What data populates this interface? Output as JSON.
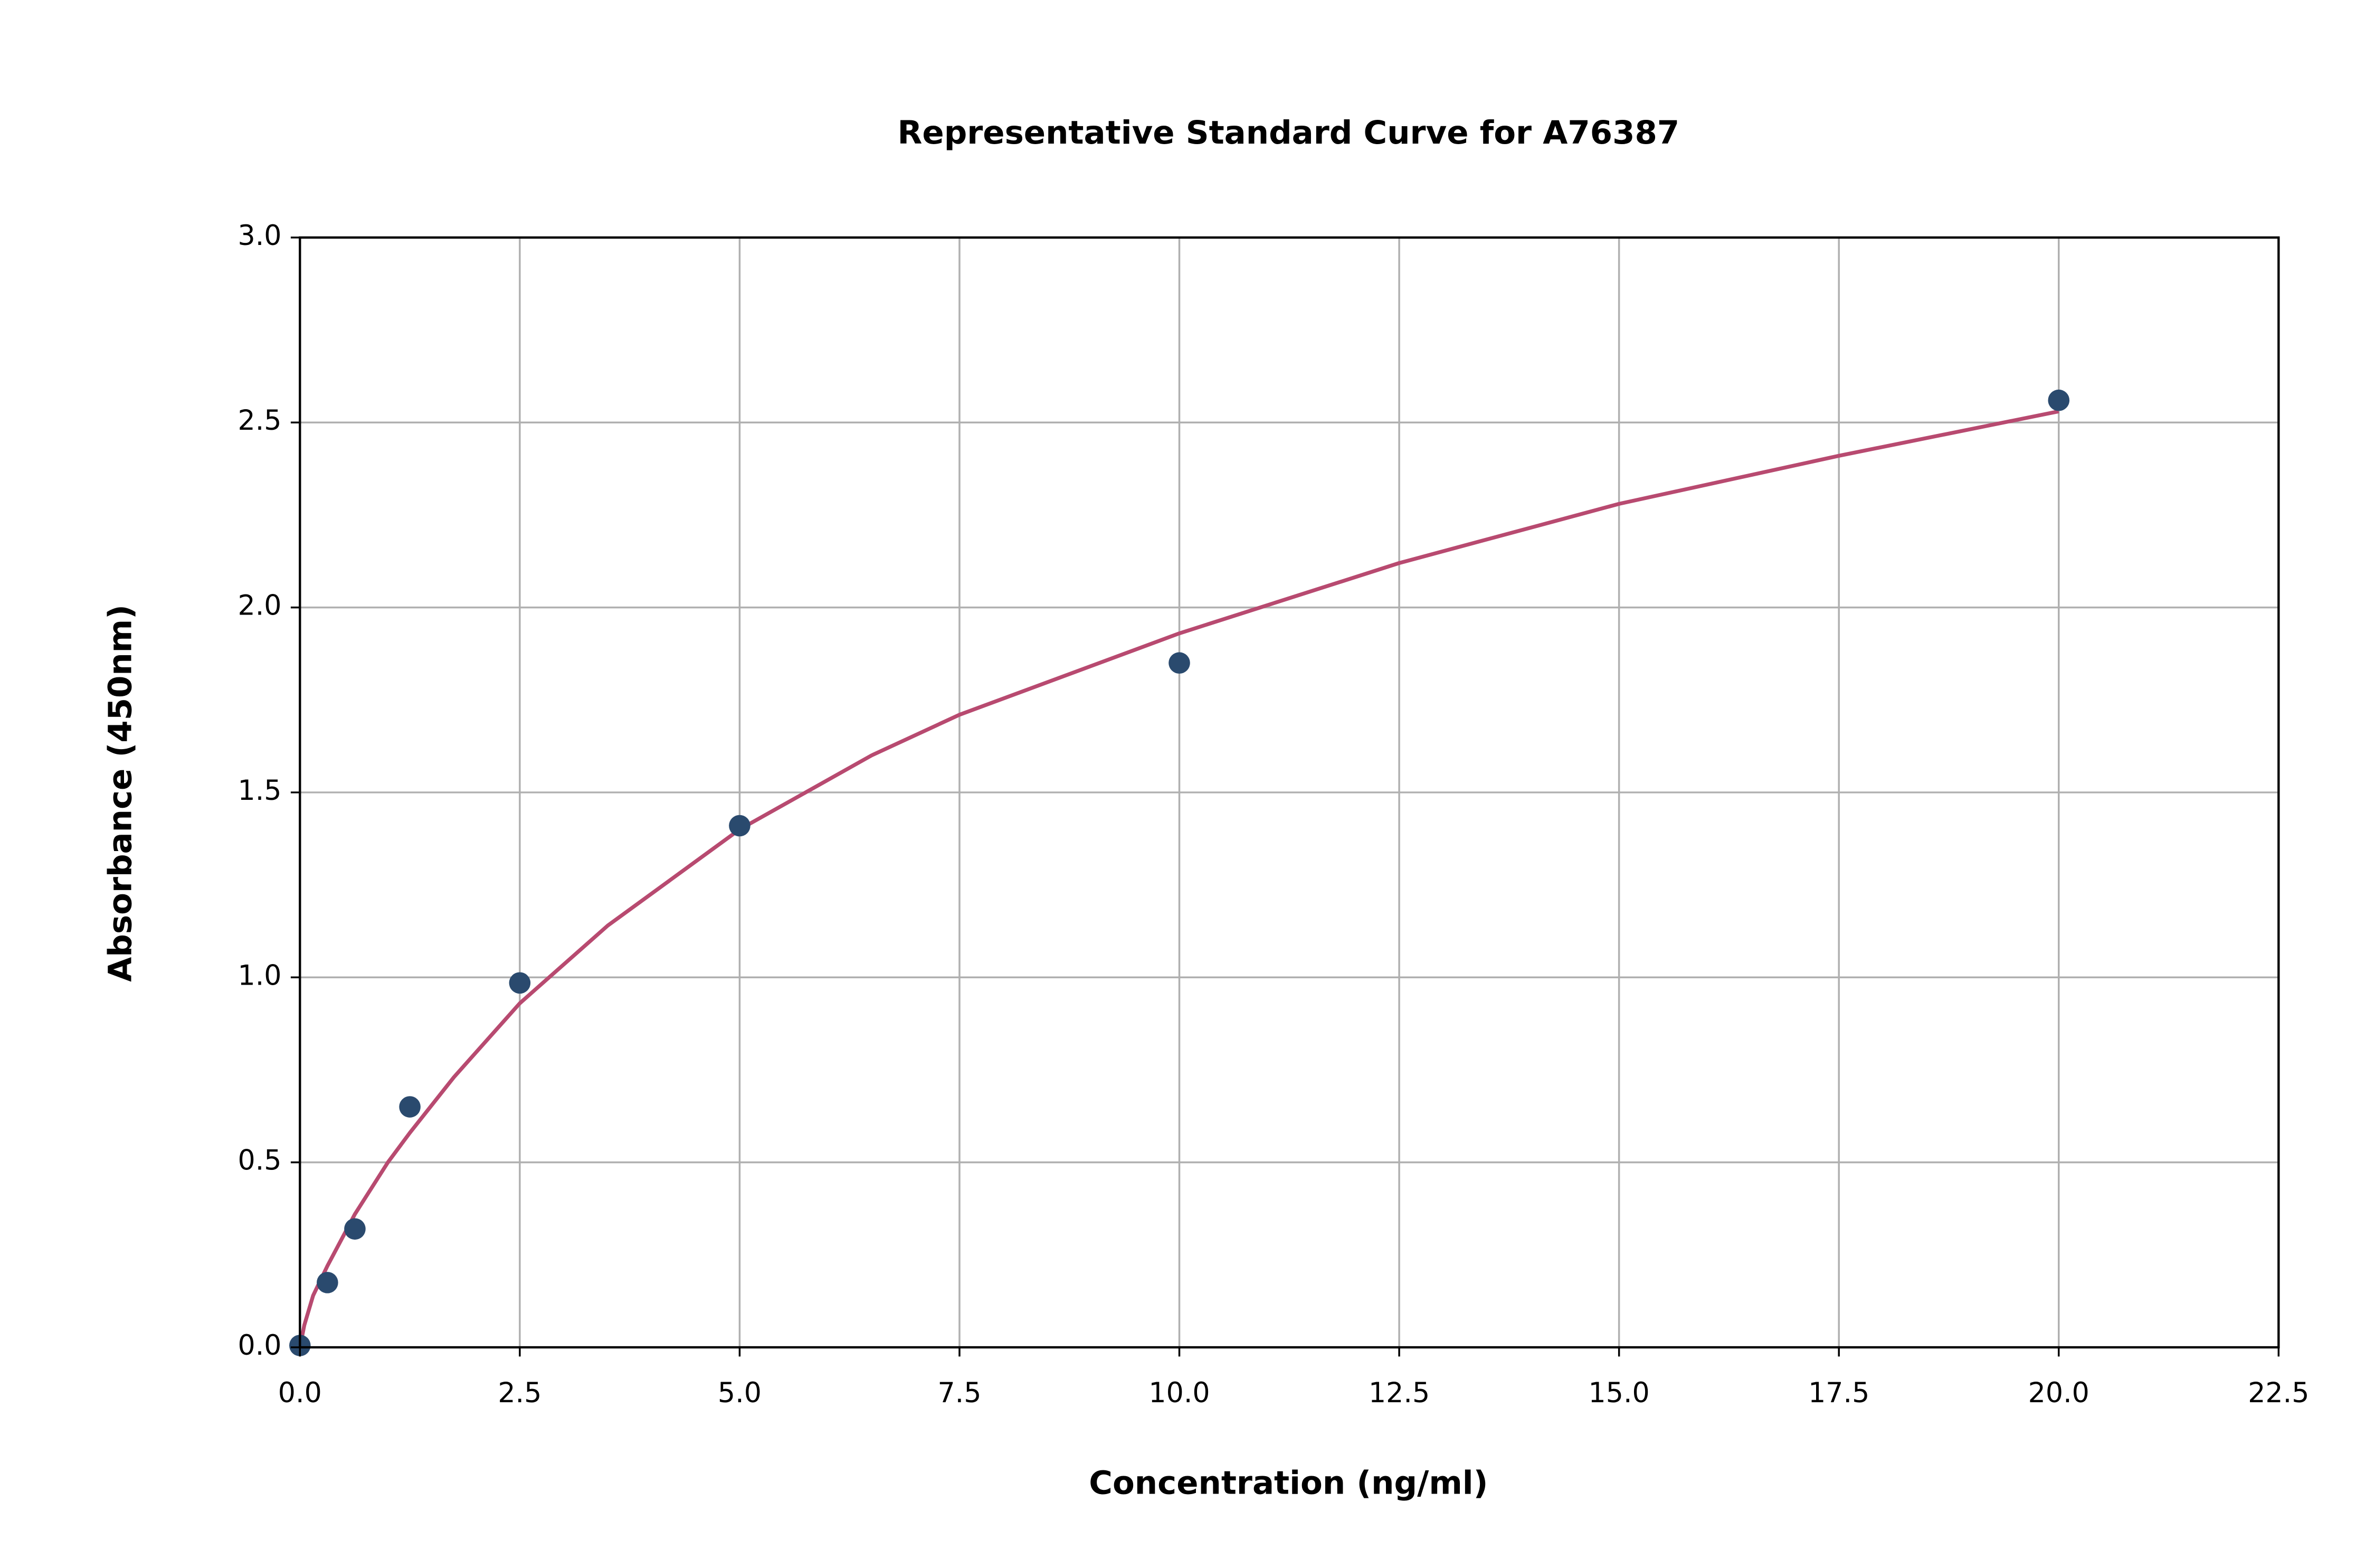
{
  "chart_data": {
    "type": "scatter",
    "title": "Representative Standard Curve for A76387",
    "x_label": "Concentration (ng/ml)",
    "y_label": "Absorbance (450nm)",
    "xlim": [
      0,
      22.5
    ],
    "ylim": [
      0,
      3
    ],
    "xticks": [
      {
        "value": 0,
        "label": "0.0"
      },
      2.5,
      {
        "value": 5,
        "label": "5.0"
      },
      7.5,
      {
        "value": 10,
        "label": "10.0"
      },
      12.5,
      {
        "value": 15,
        "label": "15.0"
      },
      17.5,
      {
        "value": 20,
        "label": "20.0"
      },
      22.5
    ],
    "yticks": [
      {
        "value": 0,
        "label": "0.0"
      },
      0.5,
      {
        "value": 1,
        "label": "1.0"
      },
      1.5,
      {
        "value": 2,
        "label": "2.0"
      },
      2.5,
      {
        "value": 3,
        "label": "3.0"
      }
    ],
    "grid": true,
    "series": [
      {
        "style": "markers",
        "color": "#2a4a6e",
        "x": [
          0,
          0.3125,
          0.625,
          1.25,
          2.5,
          5,
          10,
          20
        ],
        "values": [
          0.005,
          0.175,
          0.32,
          0.65,
          0.985,
          1.41,
          1.85,
          2.56
        ]
      },
      {
        "style": "line",
        "color": "#b84a70",
        "x": [
          0,
          0.05,
          0.15,
          0.3125,
          0.625,
          1,
          1.25,
          1.75,
          2.5,
          3.5,
          5,
          6.5,
          7.5,
          10,
          12.5,
          15,
          17.5,
          20
        ],
        "values": [
          0,
          0.06,
          0.14,
          0.22,
          0.36,
          0.5,
          0.58,
          0.73,
          0.93,
          1.14,
          1.4,
          1.6,
          1.71,
          1.93,
          2.12,
          2.28,
          2.41,
          2.53
        ]
      }
    ]
  }
}
